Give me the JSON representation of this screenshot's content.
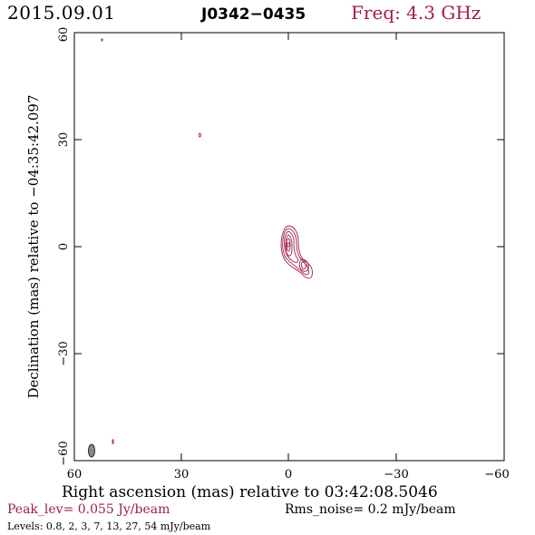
{
  "header": {
    "date": "2015.09.01",
    "source": "J0342−0435",
    "frequency": "Freq: 4.3 GHz"
  },
  "axes": {
    "x_label": "Right ascension (mas) relative to 03:42:08.5046",
    "y_label": "Declination (mas) relative to −04:35:42.097",
    "x_ticks": [
      "60",
      "30",
      "0",
      "−30",
      "−60"
    ],
    "y_ticks": [
      "60",
      "30",
      "0",
      "−30",
      "−60"
    ]
  },
  "footer": {
    "peak": "Peak_lev=  0.055 Jy/beam",
    "rms": "Rms_noise=   0.2 mJy/beam",
    "levels": "Levels: 0.8,   2,   3,   7,  13,  27,  54 mJy/beam"
  },
  "colors": {
    "contour": "#a02045",
    "text_accent": "#a02045",
    "beam": "#888888"
  }
}
